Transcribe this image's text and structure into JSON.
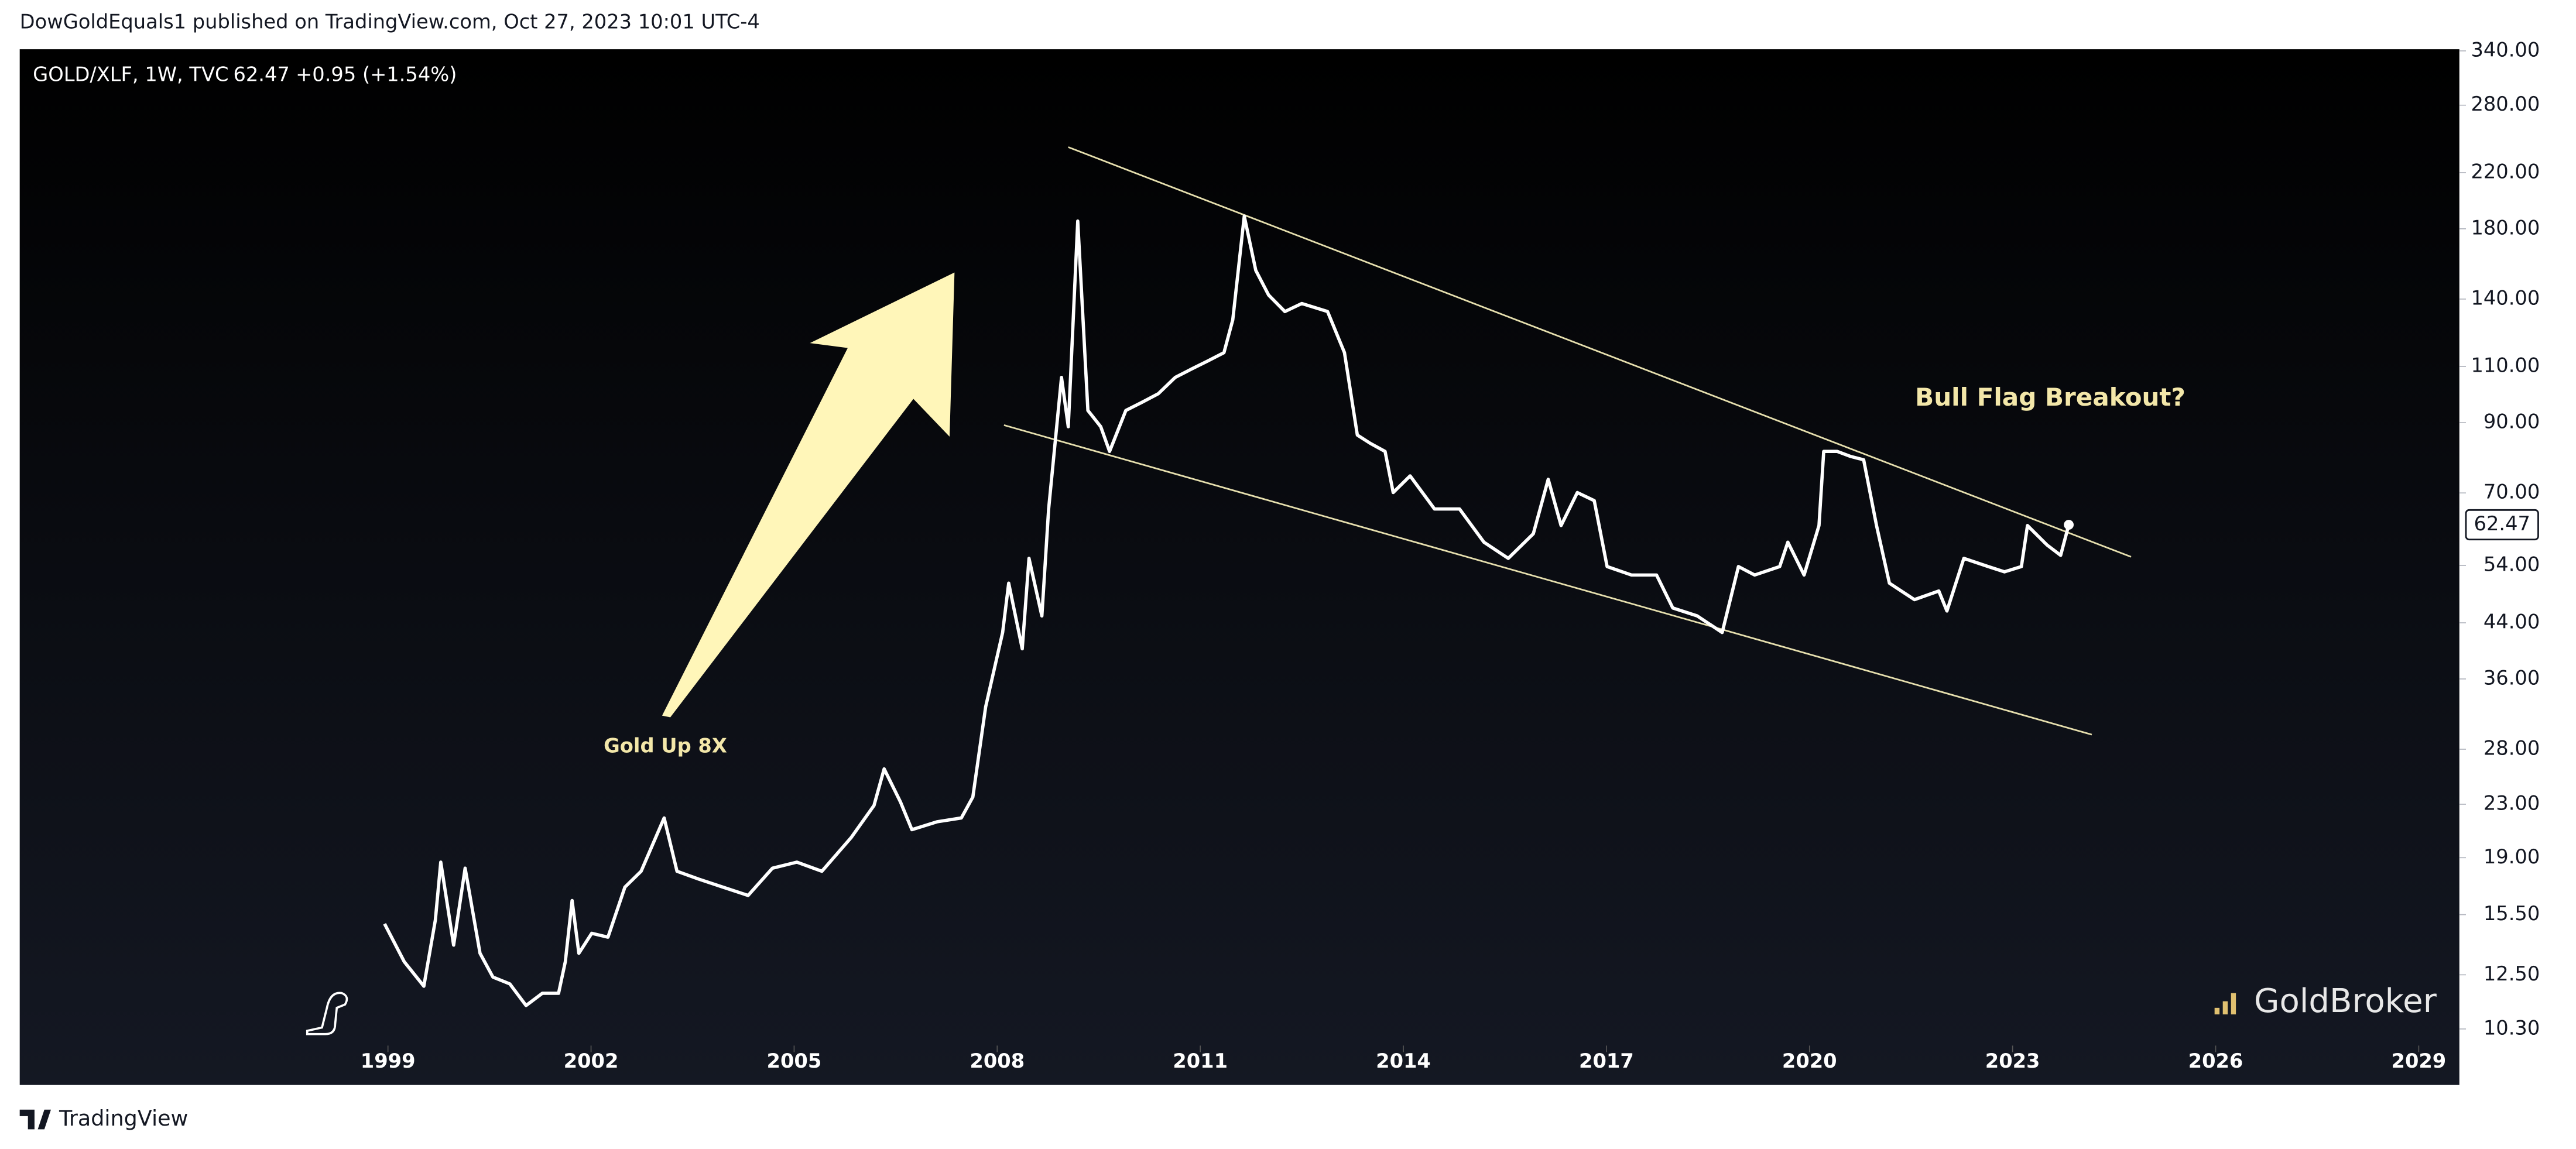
{
  "header": {
    "published": "DowGoldEquals1 published on TradingView.com, Oct 27, 2023 10:01 UTC-4"
  },
  "footer": {
    "brand": "TradingView"
  },
  "watermark": "GoldBroker",
  "chart_data": {
    "type": "line",
    "log_scale": true,
    "grid": false,
    "legend_change": "+0.95 (+1.54%)",
    "annotations": [
      "Gold Up 8X",
      "Bull Flag Breakout?"
    ],
    "xlim": [
      1993.56,
      2029.6
    ],
    "xticks": [
      1999,
      2002,
      2005,
      2008,
      2011,
      2014,
      2017,
      2020,
      2023,
      2026,
      2029
    ],
    "ylim": [
      8.43,
      342
    ],
    "yticks": [
      {
        "value": 10.3,
        "label": "10.30"
      },
      {
        "value": 12.5,
        "label": "12.50"
      },
      {
        "value": 15.5,
        "label": "15.50"
      },
      {
        "value": 19,
        "label": "19.00"
      },
      {
        "value": 23,
        "label": "23.00"
      },
      {
        "value": 28,
        "label": "28.00"
      },
      {
        "value": 36,
        "label": "36.00"
      },
      {
        "value": 44,
        "label": "44.00"
      },
      {
        "value": 54,
        "label": "54.00"
      },
      {
        "value": 70,
        "label": "70.00"
      },
      {
        "value": 90,
        "label": "90.00"
      },
      {
        "value": 110,
        "label": "110.00"
      },
      {
        "value": 140,
        "label": "140.00"
      },
      {
        "value": 180,
        "label": "180.00"
      },
      {
        "value": 220,
        "label": "220.00"
      },
      {
        "value": 280,
        "label": "280.00"
      },
      {
        "value": 340,
        "label": "340.00"
      }
    ],
    "x": [
      1998.95,
      1999.24,
      1999.53,
      1999.7,
      1999.78,
      1999.97,
      2000.14,
      2000.36,
      2000.55,
      2000.8,
      2001.04,
      2001.28,
      2001.52,
      2001.62,
      2001.72,
      2001.82,
      2002.01,
      2002.25,
      2002.5,
      2002.74,
      2003.08,
      2003.27,
      2003.59,
      2003.95,
      2004.32,
      2004.68,
      2005.04,
      2005.41,
      2005.84,
      2006.18,
      2006.33,
      2006.57,
      2006.74,
      2007.11,
      2007.47,
      2007.64,
      2007.83,
      2008.08,
      2008.17,
      2008.37,
      2008.47,
      2008.66,
      2008.76,
      2008.95,
      2009.05,
      2009.19,
      2009.34,
      2009.53,
      2009.66,
      2009.9,
      2010.14,
      2010.38,
      2010.63,
      2010.87,
      2011.11,
      2011.35,
      2011.48,
      2011.65,
      2011.82,
      2012.01,
      2012.25,
      2012.5,
      2012.88,
      2013.13,
      2013.32,
      2013.51,
      2013.73,
      2013.85,
      2014.1,
      2014.46,
      2014.83,
      2015.19,
      2015.55,
      2015.92,
      2016.14,
      2016.33,
      2016.57,
      2016.82,
      2017.01,
      2017.37,
      2017.74,
      2017.98,
      2018.34,
      2018.71,
      2018.95,
      2019.19,
      2019.56,
      2019.68,
      2019.92,
      2020.14,
      2020.21,
      2020.41,
      2020.6,
      2020.8,
      2020.99,
      2021.18,
      2021.55,
      2021.91,
      2022.03,
      2022.28,
      2022.64,
      2022.88,
      2023.13,
      2023.22,
      2023.51,
      2023.71,
      2023.83
    ],
    "series": [
      {
        "name": "GOLD/XLF, 1W, TVC",
        "color": "#ffffff",
        "values": [
          15.0,
          13.1,
          12.0,
          15.2,
          18.7,
          13.9,
          18.3,
          13.5,
          12.4,
          12.1,
          11.2,
          11.7,
          11.7,
          13.1,
          16.3,
          13.5,
          14.5,
          14.3,
          17.1,
          18.1,
          21.9,
          18.1,
          17.6,
          17.1,
          16.6,
          18.3,
          18.7,
          18.1,
          20.4,
          22.9,
          26.1,
          23.2,
          21.0,
          21.6,
          21.9,
          23.6,
          32.6,
          42.5,
          50.7,
          40.1,
          55.4,
          45.1,
          66.1,
          105.8,
          88.7,
          185.0,
          94.0,
          88.7,
          81.2,
          94.0,
          96.8,
          99.8,
          105.8,
          109.0,
          112.2,
          115.6,
          130.0,
          188.3,
          155.1,
          142.0,
          133.9,
          137.8,
          133.9,
          115.6,
          86.1,
          83.6,
          81.2,
          70.1,
          74.4,
          66.1,
          66.1,
          58.7,
          55.4,
          60.5,
          73.5,
          62.3,
          70.1,
          68.1,
          53.8,
          52.2,
          52.2,
          46.4,
          45.1,
          42.5,
          53.8,
          52.2,
          53.8,
          58.7,
          52.2,
          62.3,
          81.2,
          81.2,
          79.8,
          78.8,
          62.3,
          50.7,
          47.8,
          49.3,
          45.9,
          55.4,
          53.8,
          52.8,
          53.8,
          62.3,
          58.1,
          56.0,
          62.47
        ]
      }
    ],
    "trendlines": [
      {
        "color": "#e6dfae",
        "x": [
          2009.05,
          2024.75
        ],
        "values": [
          241,
          55.7
        ]
      },
      {
        "color": "#e6dfae",
        "x": [
          2008.1,
          2024.17
        ],
        "values": [
          89.2,
          29.5
        ]
      }
    ]
  }
}
